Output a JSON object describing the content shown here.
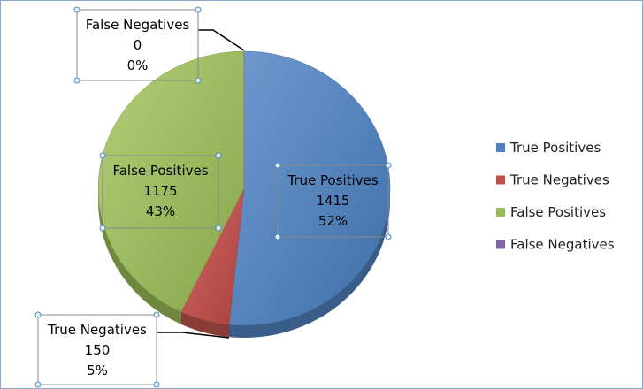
{
  "chart_data": {
    "type": "pie",
    "title": "",
    "categories": [
      "True Positives",
      "True Negatives",
      "False Positives",
      "False Negatives"
    ],
    "values": [
      1415,
      150,
      1175,
      0
    ],
    "percent_labels": [
      "52%",
      "5%",
      "43%",
      "0%"
    ],
    "colors": [
      "#4f81bd",
      "#c0504d",
      "#9bbb59",
      "#8064a2"
    ],
    "legend_position": "right",
    "style": "3d-pie"
  }
}
